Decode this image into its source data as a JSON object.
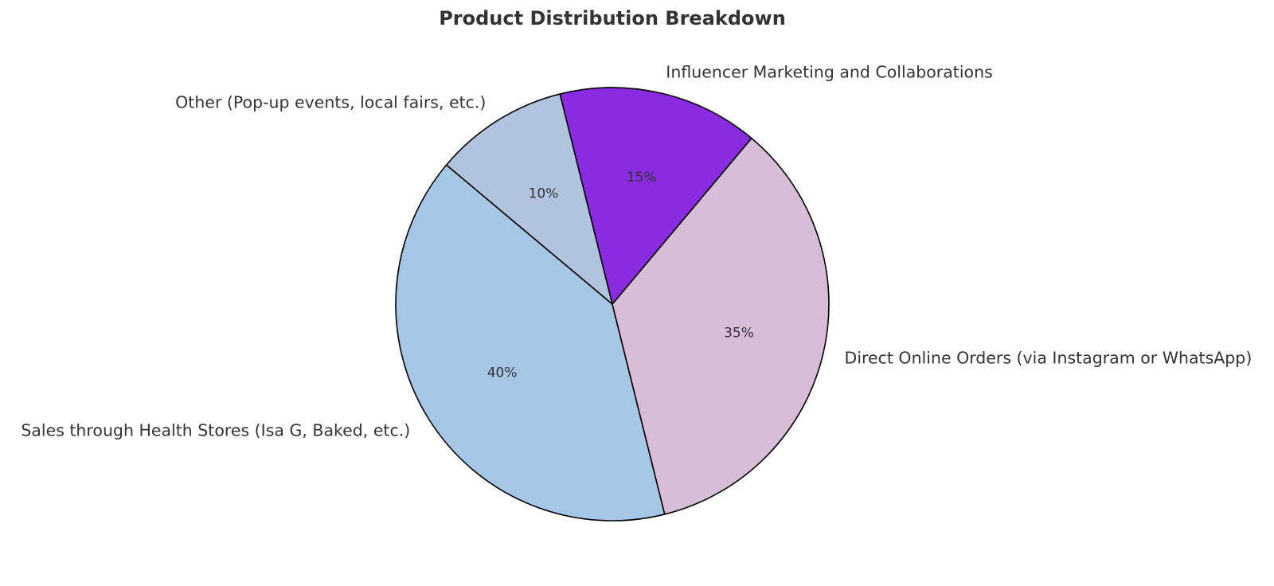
{
  "chart_data": {
    "type": "pie",
    "title": "Product Distribution Breakdown",
    "start_angle": 140,
    "direction": "counterclockwise",
    "slices": [
      {
        "label": "Sales through Health Stores (Isa G, Baked, etc.)",
        "value": 40,
        "pct_label": "40%",
        "color": "#a6c6e6"
      },
      {
        "label": "Direct Online Orders (via Instagram or WhatsApp)",
        "value": 35,
        "pct_label": "35%",
        "color": "#d8bdd8"
      },
      {
        "label": "Influencer Marketing and Collaborations",
        "value": 15,
        "pct_label": "15%",
        "color": "#8a2be2"
      },
      {
        "label": "Other (Pop-up events, local fairs, etc.)",
        "value": 10,
        "pct_label": "10%",
        "color": "#b0c4de"
      }
    ]
  }
}
